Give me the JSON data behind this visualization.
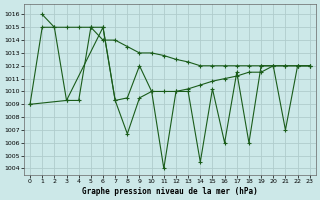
{
  "title": "Graphe pression niveau de la mer (hPa)",
  "bg": "#cce8e8",
  "grid_color": "#b0cccc",
  "lc": "#1a5c1a",
  "ylim": [
    1003.5,
    1016.8
  ],
  "xlim": [
    -0.5,
    23.5
  ],
  "yticks": [
    1004,
    1005,
    1006,
    1007,
    1008,
    1009,
    1010,
    1011,
    1012,
    1013,
    1014,
    1015,
    1016
  ],
  "xticks": [
    0,
    1,
    2,
    3,
    4,
    5,
    6,
    7,
    8,
    9,
    10,
    11,
    12,
    13,
    14,
    15,
    16,
    17,
    18,
    19,
    20,
    21,
    22,
    23
  ],
  "line1_x": [
    1,
    2,
    3,
    4,
    5,
    6,
    7,
    8,
    9,
    10,
    11,
    12,
    13,
    14,
    15,
    16,
    17,
    18,
    19,
    20,
    21,
    22,
    23
  ],
  "line1_y": [
    1016.0,
    1015.0,
    1015.0,
    1015.0,
    1015.0,
    1014.0,
    1014.0,
    1013.5,
    1013.0,
    1013.0,
    1012.8,
    1012.5,
    1012.3,
    1012.0,
    1012.0,
    1012.0,
    1012.0,
    1012.0,
    1012.0,
    1012.0,
    1012.0,
    1012.0,
    1012.0
  ],
  "line2_x": [
    0,
    1,
    2,
    3,
    4,
    5,
    6,
    7,
    8,
    9,
    10,
    11,
    12,
    13,
    14,
    15,
    16,
    17,
    18,
    19,
    20,
    21,
    22,
    23
  ],
  "line2_y": [
    1009.0,
    1015.0,
    1015.0,
    1009.3,
    1009.3,
    1015.0,
    1015.0,
    1009.3,
    1009.5,
    1012.0,
    1010.0,
    1010.0,
    1010.0,
    1010.2,
    1010.5,
    1010.8,
    1011.0,
    1011.2,
    1011.5,
    1011.5,
    1012.0,
    1012.0,
    1012.0,
    1012.0
  ],
  "line3_x": [
    0,
    3,
    6,
    7,
    8,
    9,
    10,
    11,
    12,
    13,
    14,
    15,
    16,
    17,
    18,
    19,
    20,
    21,
    22,
    23
  ],
  "line3_y": [
    1009.0,
    1009.3,
    1015.0,
    1009.3,
    1006.7,
    1009.5,
    1010.0,
    1004.0,
    1010.0,
    1010.0,
    1004.5,
    1010.2,
    1006.0,
    1011.5,
    1006.0,
    1012.0,
    1012.0,
    1007.0,
    1012.0,
    1012.0
  ]
}
